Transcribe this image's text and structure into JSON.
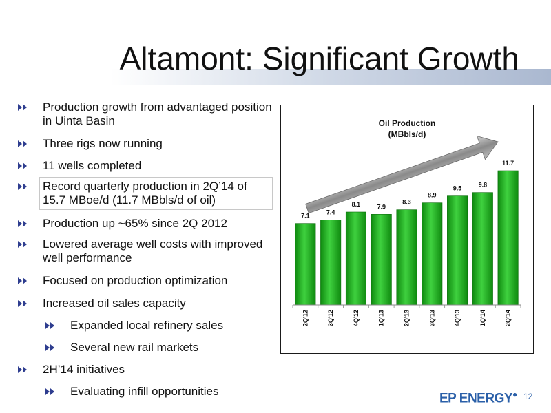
{
  "slide": {
    "title": "Altamont: Significant Growth",
    "page_number": "12",
    "logo_text": "EP ENERGY"
  },
  "bullets": [
    {
      "text": "Production growth from advantaged position in Uinta Basin",
      "level": 1,
      "boxed": false
    },
    {
      "text": "Three rigs now running",
      "level": 1,
      "boxed": false
    },
    {
      "text": "11 wells completed",
      "level": 1,
      "boxed": false
    },
    {
      "text": "Record quarterly production in 2Q’14 of 15.7 MBoe/d  (11.7 MBbls/d of oil)",
      "level": 1,
      "boxed": true
    },
    {
      "text": "Production up ~65% since 2Q 2012",
      "level": 1,
      "boxed": false
    },
    {
      "text": "Lowered average well costs with improved well performance",
      "level": 1,
      "boxed": false
    },
    {
      "text": "Focused on production optimization",
      "level": 1,
      "boxed": false
    },
    {
      "text": "Increased oil sales capacity",
      "level": 1,
      "boxed": false
    },
    {
      "text": "Expanded local refinery sales",
      "level": 2,
      "boxed": false
    },
    {
      "text": "Several new rail markets",
      "level": 2,
      "boxed": false
    },
    {
      "text": "2H’14 initiatives",
      "level": 1,
      "boxed": false
    },
    {
      "text": "Evaluating infill opportunities",
      "level": 2,
      "boxed": false
    }
  ],
  "colors": {
    "bar_light": "#3fd13f",
    "bar_dark": "#0f8a0f",
    "bullet_arrow": "#2e3d8f",
    "growth_arrow": "#8a8a8a"
  },
  "chart_data": {
    "type": "bar",
    "title": "Oil Production",
    "subtitle": "(MBbls/d)",
    "categories": [
      "2Q'12",
      "3Q'12",
      "4Q'12",
      "1Q'13",
      "2Q'13",
      "3Q'13",
      "4Q'13",
      "1Q'14",
      "2Q'14"
    ],
    "values": [
      7.1,
      7.4,
      8.1,
      7.9,
      8.3,
      8.9,
      9.5,
      9.8,
      11.7
    ],
    "data_labels": [
      "7.1",
      "7.4",
      "8.1",
      "7.9",
      "8.3",
      "8.9",
      "9.5",
      "9.8",
      "11.7"
    ],
    "ylim": [
      0,
      13.5
    ],
    "grid": false,
    "annotation": "growth-arrow"
  }
}
